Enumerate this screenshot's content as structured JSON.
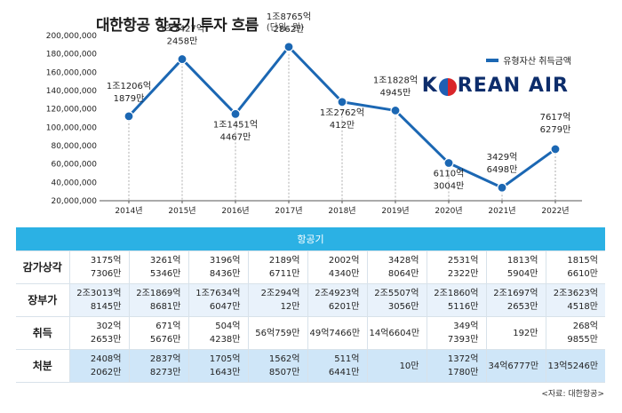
{
  "title": "대한항공 항공기 투자 흐름",
  "unit": "(단위: 원)",
  "legend_label": "유형자산 취득금액",
  "logo_text": "KOREAN AIR",
  "source": "<자료: 대한항공>",
  "colors": {
    "line": "#1b67b3",
    "table_header": "#2bb1e4",
    "row_tint": "#e9f2fb",
    "row_tint_dark": "#cfe6f8"
  },
  "chart_data": {
    "type": "line",
    "categories": [
      "2014년",
      "2015년",
      "2016년",
      "2017년",
      "2018년",
      "2019년",
      "2020년",
      "2021년",
      "2022년"
    ],
    "series": [
      {
        "name": "유형자산 취득금액",
        "values": [
          112061879,
          174272458,
          114514467,
          187652862,
          127620412,
          118284945,
          61103004,
          34296498,
          76176279
        ],
        "labels": [
          [
            "1조1206억",
            "1879만"
          ],
          [
            "1조7427억",
            "2458만"
          ],
          [
            "1조1451억",
            "4467만"
          ],
          [
            "1조8765억",
            "2862만"
          ],
          [
            "1조2762억",
            "412만"
          ],
          [
            "1조1828억",
            "4945만"
          ],
          [
            "6110억",
            "3004만"
          ],
          [
            "3429억",
            "6498만"
          ],
          [
            "7617억",
            "6279만"
          ]
        ]
      }
    ],
    "y_ticks": [
      "20,000,000",
      "40,000,000",
      "60,000,000",
      "80,000,000",
      "100,000,000",
      "120,000,000",
      "140,000,000",
      "160,000,000",
      "180,000,000",
      "200,000,000"
    ],
    "ylim": [
      20000000,
      200000000
    ],
    "grid": false,
    "legend_position": "top-right"
  },
  "table": {
    "header": "항공기",
    "rows": [
      {
        "label": "감가상각",
        "cells": [
          [
            "3175억",
            "7306만"
          ],
          [
            "3261억",
            "5346만"
          ],
          [
            "3196억",
            "8436만"
          ],
          [
            "2189억",
            "6711만"
          ],
          [
            "2002억",
            "4340만"
          ],
          [
            "3428억",
            "8064만"
          ],
          [
            "2531억",
            "2322만"
          ],
          [
            "1813억",
            "5904만"
          ],
          [
            "1815억",
            "6610만"
          ]
        ]
      },
      {
        "label": "장부가",
        "cells": [
          [
            "2조3013억",
            "8145만"
          ],
          [
            "2조1869억",
            "8681만"
          ],
          [
            "1조7634억",
            "6047만"
          ],
          [
            "2조294억",
            "12만"
          ],
          [
            "2조4923억",
            "6201만"
          ],
          [
            "2조5507억",
            "3056만"
          ],
          [
            "2조1860억",
            "5116만"
          ],
          [
            "2조1697억",
            "2653만"
          ],
          [
            "2조3623억",
            "4518만"
          ]
        ]
      },
      {
        "label": "취득",
        "cells": [
          [
            "302억",
            "2653만"
          ],
          [
            "671억",
            "5676만"
          ],
          [
            "504억",
            "4238만"
          ],
          [
            "56억759만"
          ],
          [
            "49억7466만"
          ],
          [
            "14억6604만"
          ],
          [
            "349억",
            "7393만"
          ],
          [
            "192만"
          ],
          [
            "268억",
            "9855만"
          ]
        ]
      },
      {
        "label": "처분",
        "cells": [
          [
            "2408억",
            "2062만"
          ],
          [
            "2837억",
            "8273만"
          ],
          [
            "1705억",
            "1643만"
          ],
          [
            "1562억",
            "8507만"
          ],
          [
            "511억",
            "6441만"
          ],
          [
            "10만"
          ],
          [
            "1372억",
            "1780만"
          ],
          [
            "34억6777만"
          ],
          [
            "13억5246만"
          ]
        ]
      }
    ]
  }
}
